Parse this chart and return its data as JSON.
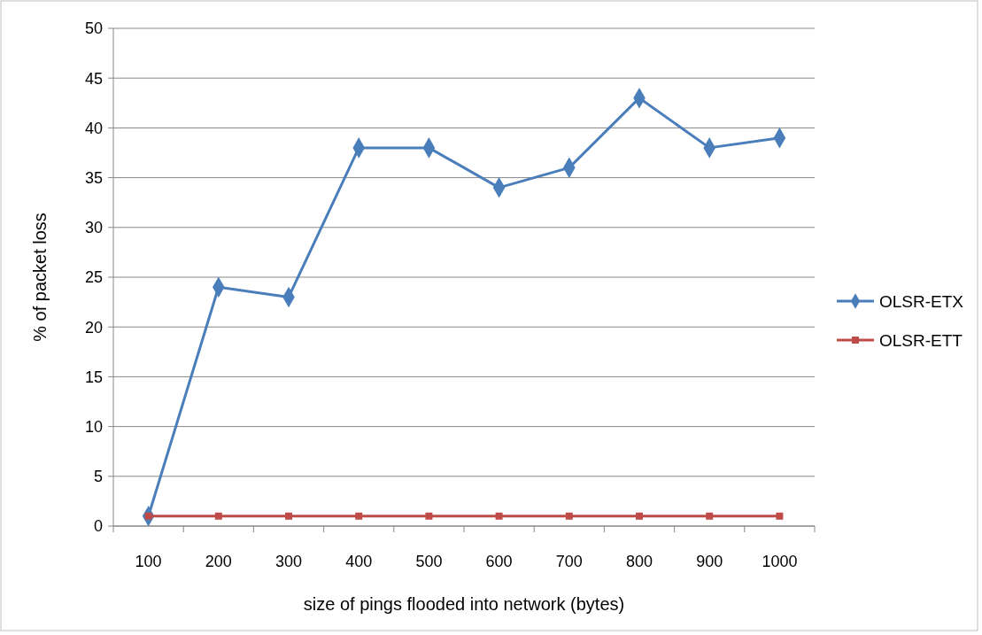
{
  "chart_data": {
    "type": "line",
    "xlabel": "size of pings flooded into network (bytes)",
    "ylabel": "% of packet loss",
    "categories": [
      "100",
      "200",
      "300",
      "400",
      "500",
      "600",
      "700",
      "800",
      "900",
      "1000"
    ],
    "series": [
      {
        "name": "OLSR-ETX",
        "color": "#4a7ebb",
        "marker": "diamond",
        "values": [
          1,
          24,
          23,
          38,
          38,
          34,
          36,
          43,
          38,
          39
        ]
      },
      {
        "name": "OLSR-ETT",
        "color": "#be4b48",
        "marker": "square",
        "values": [
          1,
          1,
          1,
          1,
          1,
          1,
          1,
          1,
          1,
          1
        ]
      }
    ],
    "ylim": [
      0,
      50
    ],
    "yticks": [
      0,
      5,
      10,
      15,
      20,
      25,
      30,
      35,
      40,
      45,
      50
    ],
    "grid": "y",
    "legend": "right",
    "line_style": "solid"
  }
}
